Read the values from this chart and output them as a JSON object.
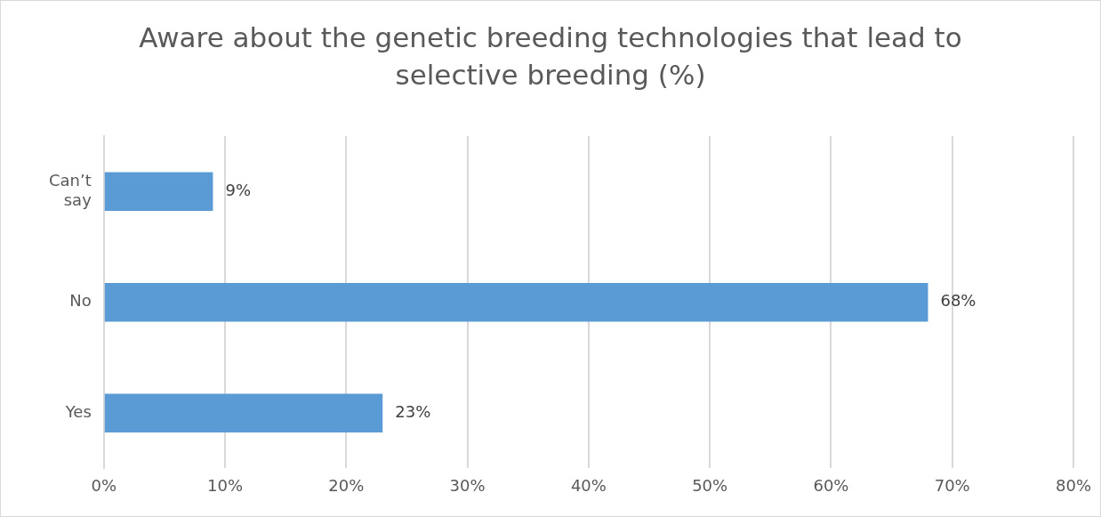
{
  "chart_data": {
    "type": "bar",
    "orientation": "horizontal",
    "title": "Aware about the genetic breeding technologies that lead to selective breeding (%)",
    "categories": [
      "Can’t say",
      "No",
      "Yes"
    ],
    "values": [
      9,
      68,
      23
    ],
    "value_labels": [
      "9%",
      "68%",
      "23%"
    ],
    "color": "#5b9bd5",
    "xlim": [
      0,
      80
    ],
    "xticks": [
      {
        "value": 0,
        "label": "0%"
      },
      {
        "value": 10,
        "label": "10%"
      },
      {
        "value": 20,
        "label": "20%"
      },
      {
        "value": 30,
        "label": "30%"
      },
      {
        "value": 40,
        "label": "40%"
      },
      {
        "value": 50,
        "label": "50%"
      },
      {
        "value": 60,
        "label": "60%"
      },
      {
        "value": 70,
        "label": "70%"
      },
      {
        "value": 80,
        "label": "80%"
      }
    ],
    "grid": "x",
    "legend": false
  }
}
